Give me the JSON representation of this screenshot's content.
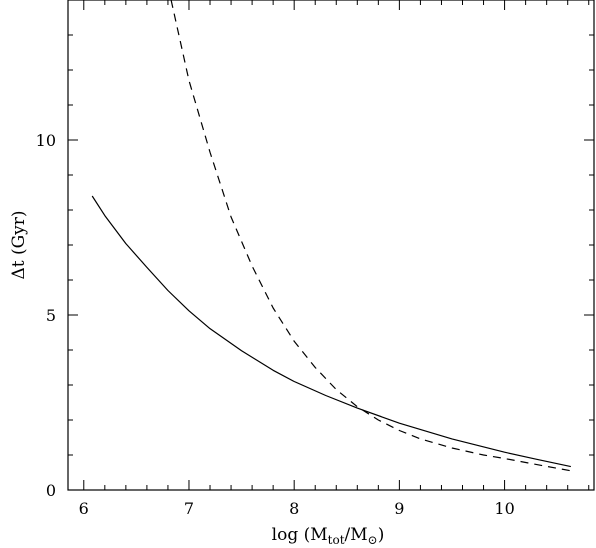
{
  "chart_data": {
    "type": "line",
    "xlabel_prefix": "log (M",
    "xlabel_sub1": "tot",
    "xlabel_mid": "/M",
    "xlabel_sub2": "⊙",
    "xlabel_suffix": ")",
    "ylabel": "Δt (Gyr)",
    "xlim": [
      5.85,
      10.85
    ],
    "ylim": [
      0,
      14
    ],
    "x_major_ticks": [
      6,
      7,
      8,
      9,
      10
    ],
    "x_tick_labels": [
      "6",
      "7",
      "8",
      "9",
      "10"
    ],
    "y_major_ticks": [
      0,
      5,
      10
    ],
    "y_tick_labels": [
      "0",
      "5",
      "10"
    ],
    "grid": false,
    "series": [
      {
        "style": "solid",
        "x": [
          6.08,
          6.2,
          6.4,
          6.6,
          6.8,
          7.0,
          7.2,
          7.5,
          7.8,
          8.0,
          8.3,
          8.6,
          9.0,
          9.5,
          10.0,
          10.3,
          10.63
        ],
        "y": [
          8.4,
          7.84,
          7.04,
          6.36,
          5.7,
          5.12,
          4.61,
          3.98,
          3.42,
          3.1,
          2.7,
          2.34,
          1.91,
          1.46,
          1.08,
          0.88,
          0.67
        ]
      },
      {
        "style": "dashed",
        "x": [
          6.83,
          7.0,
          7.2,
          7.4,
          7.6,
          7.8,
          8.0,
          8.2,
          8.4,
          8.6,
          8.8,
          9.0,
          9.2,
          9.5,
          9.8,
          10.0,
          10.3,
          10.63
        ],
        "y": [
          14.0,
          11.7,
          9.65,
          7.8,
          6.4,
          5.2,
          4.25,
          3.5,
          2.87,
          2.38,
          2.0,
          1.7,
          1.46,
          1.2,
          1.0,
          0.9,
          0.73,
          0.55
        ]
      }
    ]
  }
}
